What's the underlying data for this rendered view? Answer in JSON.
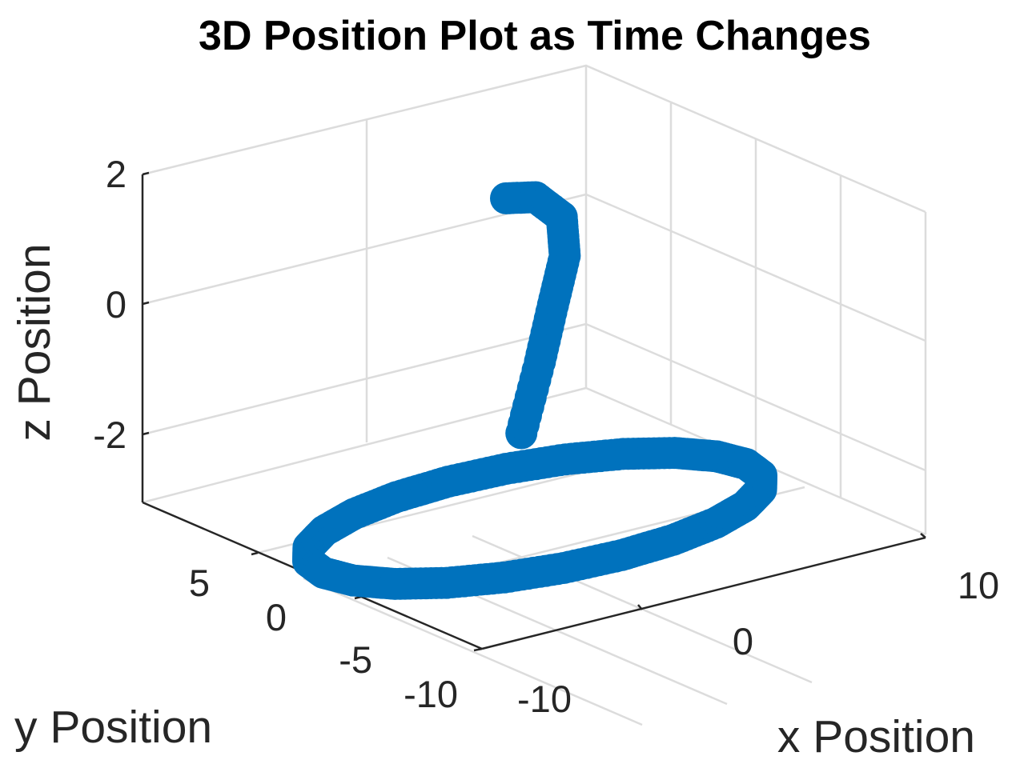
{
  "chart_data": {
    "type": "scatter",
    "title": "3D Position Plot as Time Changes",
    "xlabel": "x Position",
    "ylabel": "y Position",
    "zlabel": "z Position",
    "x_ticks": [
      "-10",
      "0",
      "10"
    ],
    "y_ticks": [
      "-10",
      "-5",
      "0",
      "5"
    ],
    "z_ticks": [
      "-2",
      "0",
      "2"
    ],
    "xlim": [
      -16,
      12
    ],
    "ylim": [
      -14,
      9
    ],
    "zlim": [
      -3,
      2
    ],
    "grid": true,
    "marker_color": "#0072BD",
    "series": [
      {
        "points": [
          [
            10.0,
            0.0,
            -3.0
          ],
          [
            9.66,
            2.59,
            -3.0
          ],
          [
            8.66,
            5.0,
            -3.0
          ],
          [
            7.07,
            7.07,
            -3.0
          ],
          [
            5.0,
            8.66,
            -3.0
          ],
          [
            2.59,
            9.66,
            -3.0
          ],
          [
            0.0,
            10.0,
            -3.0
          ],
          [
            -2.59,
            9.66,
            -3.0
          ],
          [
            -5.0,
            8.66,
            -3.0
          ],
          [
            -7.07,
            7.07,
            -3.0
          ],
          [
            -8.66,
            5.0,
            -3.0
          ],
          [
            -9.66,
            2.59,
            -3.0
          ],
          [
            -10.0,
            0.0,
            -3.0
          ],
          [
            -9.66,
            -2.59,
            -3.0
          ],
          [
            -8.66,
            -5.0,
            -3.0
          ],
          [
            -7.07,
            -7.07,
            -3.0
          ],
          [
            -5.0,
            -8.66,
            -3.0
          ],
          [
            -2.59,
            -9.66,
            -3.0
          ],
          [
            0.0,
            -10.0,
            -3.0
          ],
          [
            2.59,
            -9.66,
            -3.0
          ],
          [
            5.0,
            -8.66,
            -3.0
          ],
          [
            7.07,
            -7.07,
            -3.0
          ],
          [
            8.66,
            -5.0,
            -3.0
          ],
          [
            9.66,
            -2.59,
            -3.0
          ],
          [
            1.0,
            4.0,
            -2.0
          ],
          [
            2.0,
            4.3,
            -1.0
          ],
          [
            2.7,
            4.5,
            -0.2
          ],
          [
            3.3,
            4.6,
            0.5
          ],
          [
            3.2,
            4.7,
            1.1
          ],
          [
            2.0,
            4.8,
            1.5
          ],
          [
            0.6,
            4.8,
            1.6
          ]
        ]
      }
    ]
  }
}
